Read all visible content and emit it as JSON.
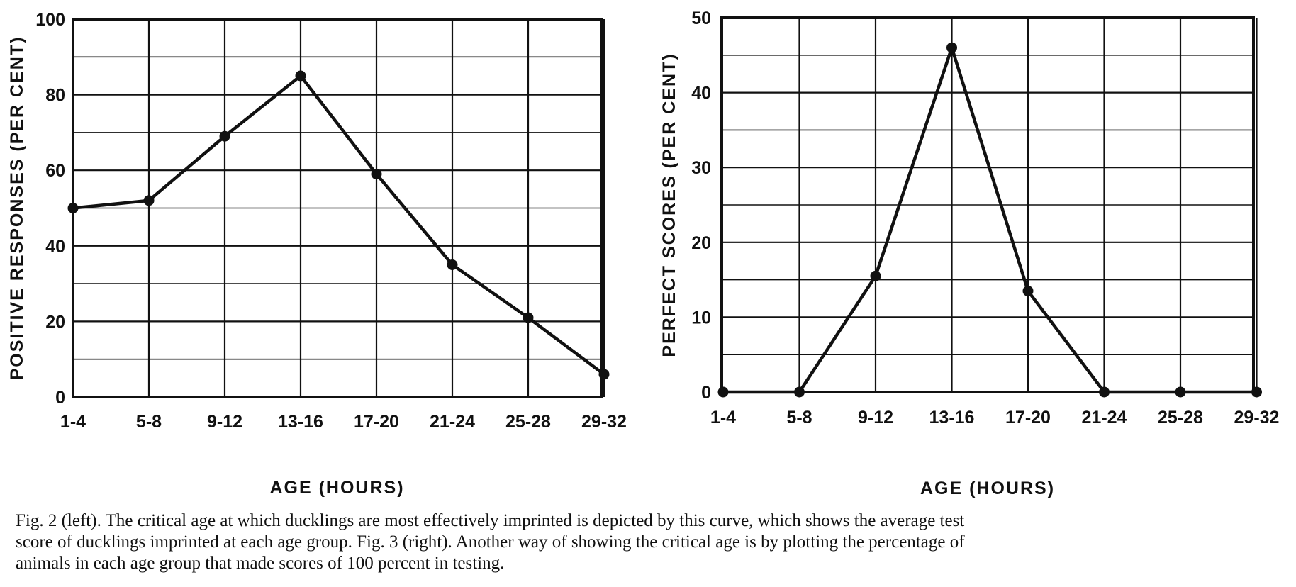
{
  "chart_data": [
    {
      "type": "line",
      "categories": [
        "1-4",
        "5-8",
        "9-12",
        "13-16",
        "17-20",
        "21-24",
        "25-28",
        "29-32"
      ],
      "values": [
        50,
        52,
        69,
        85,
        59,
        35,
        21,
        6
      ],
      "ylim": [
        0,
        100
      ],
      "yticks": [
        "0",
        "20",
        "40",
        "60",
        "80",
        "100"
      ],
      "xlabel": "AGE   (HOURS)",
      "ylabel": "POSITIVE  RESPONSES  (PER CENT)",
      "grid": true,
      "colors": {
        "line": "#111111",
        "grid": "#111111"
      }
    },
    {
      "type": "line",
      "categories": [
        "1-4",
        "5-8",
        "9-12",
        "13-16",
        "17-20",
        "21-24",
        "25-28",
        "29-32"
      ],
      "values": [
        0,
        0,
        15.5,
        46,
        13.5,
        0,
        0,
        0
      ],
      "ylim": [
        0,
        50
      ],
      "yticks": [
        "0",
        "10",
        "20",
        "30",
        "40",
        "50"
      ],
      "xlabel": "AGE   (HOURS)",
      "ylabel": "PERFECT  SCORES  (PER CENT)",
      "grid": true,
      "colors": {
        "line": "#111111",
        "grid": "#111111"
      }
    }
  ],
  "caption": {
    "line1": "Fig. 2 (left). The critical age at which ducklings are most effectively imprinted is depicted by this curve, which shows the average test",
    "line2": "score of ducklings imprinted at each age group. Fig. 3 (right). Another way of showing the critical age is by plotting the percentage of",
    "line3": "animals in each age group that made scores of 100 percent in testing."
  }
}
